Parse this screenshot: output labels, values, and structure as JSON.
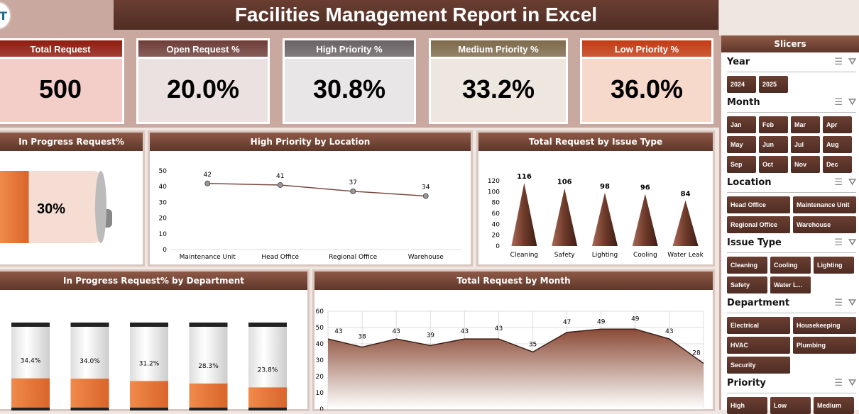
{
  "title": "Facilities Management Report in Excel",
  "logo_text": "T",
  "kpis": [
    {
      "label": "Total Request",
      "value": "500",
      "header": "#8f1c10",
      "bg": "#f3cdc8"
    },
    {
      "label": "Open Request %",
      "value": "20.0%",
      "header": "#6e3d38",
      "bg": "#ebe1e0"
    },
    {
      "label": "High Priority %",
      "value": "30.8%",
      "header": "#6a6264",
      "bg": "#e8e6e7"
    },
    {
      "label": "Medium Priority %",
      "value": "33.2%",
      "header": "#7e6a4c",
      "bg": "#eee7df"
    },
    {
      "label": "Low Priority %",
      "value": "36.0%",
      "header": "#c23b14",
      "bg": "#f7d9cc"
    }
  ],
  "panels": {
    "in_progress": "In Progress Request%",
    "by_location": "High Priority by Location",
    "by_issue": "Total Request by Issue Type",
    "by_department": "In Progress Request% by Department",
    "by_month": "Total Request by Month"
  },
  "chart_data": [
    {
      "type": "gauge",
      "title": "In Progress Request%",
      "value": 30,
      "label": "30%"
    },
    {
      "type": "line",
      "title": "High Priority by Location",
      "categories": [
        "Maintenance Unit",
        "Head Office",
        "Regional Office",
        "Warehouse"
      ],
      "values": [
        42,
        41,
        37,
        34
      ],
      "ylim": [
        0,
        50
      ],
      "yticks": [
        0,
        10,
        20,
        30,
        40,
        50
      ]
    },
    {
      "type": "bar",
      "title": "Total Request by Issue Type",
      "categories": [
        "Cleaning",
        "Safety",
        "Lighting",
        "Cooling",
        "Water Leak"
      ],
      "values": [
        116,
        106,
        98,
        96,
        84
      ],
      "ylim": [
        0,
        120
      ],
      "yticks": [
        0,
        20,
        40,
        60,
        80,
        100,
        120
      ]
    },
    {
      "type": "bar",
      "title": "In Progress Request% by Department",
      "values": [
        34.4,
        34.0,
        31.2,
        28.3,
        23.8
      ],
      "labels": [
        "34.4%",
        "34.0%",
        "31.2%",
        "28.3%",
        "23.8%"
      ]
    },
    {
      "type": "area",
      "title": "Total Request by Month",
      "values": [
        43,
        38,
        43,
        39,
        43,
        43,
        35,
        47,
        49,
        49,
        43,
        28
      ],
      "ylim": [
        0,
        60
      ],
      "yticks": [
        0,
        10,
        20,
        30,
        40,
        50,
        60
      ],
      "grid": true
    }
  ],
  "slicers": {
    "title": "Slicers",
    "groups": [
      {
        "name": "Year",
        "items": [
          "2024",
          "2025"
        ],
        "cols": 4
      },
      {
        "name": "Month",
        "items": [
          "Jan",
          "Feb",
          "Mar",
          "Apr",
          "May",
          "Jun",
          "Jul",
          "Aug",
          "Sep",
          "Oct",
          "Nov",
          "Dec"
        ],
        "cols": 4
      },
      {
        "name": "Location",
        "items": [
          "Head Office",
          "Maintenance Unit",
          "Regional Office",
          "Warehouse"
        ],
        "cols": 2
      },
      {
        "name": "Issue Type",
        "items": [
          "Cleaning",
          "Cooling",
          "Lighting",
          "Safety",
          "Water L..."
        ],
        "cols": 3
      },
      {
        "name": "Department",
        "items": [
          "Electrical",
          "Housekeeping",
          "HVAC",
          "Plumbing",
          "Security"
        ],
        "cols": 2
      },
      {
        "name": "Priority",
        "items": [
          "High",
          "Low",
          "Medium"
        ],
        "cols": 3
      }
    ]
  },
  "colors": {
    "accent": "#5e3629",
    "orange": "#e87a3a"
  }
}
